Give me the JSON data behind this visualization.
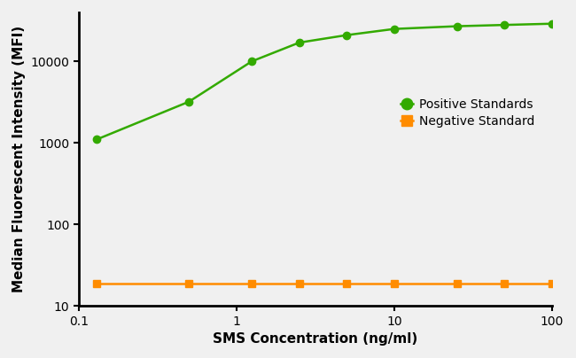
{
  "positive_x": [
    0.13,
    0.5,
    1.25,
    2.5,
    5.0,
    10.0,
    25.0,
    50.0,
    100.0
  ],
  "positive_y": [
    1100,
    3200,
    10000,
    17000,
    21000,
    25000,
    27000,
    28000,
    29000
  ],
  "negative_x": [
    0.13,
    0.5,
    1.25,
    2.5,
    5.0,
    10.0,
    25.0,
    50.0,
    100.0
  ],
  "negative_y": [
    19,
    19,
    19,
    19,
    19,
    19,
    19,
    19,
    19
  ],
  "positive_color": "#33aa00",
  "negative_color": "#ff8c00",
  "positive_label": "Positive Standards",
  "negative_label": "Negative Standard",
  "xlabel": "SMS Concentration (ng/ml)",
  "ylabel": "Median Fluorescent Intensity (MFI)",
  "xlim": [
    0.1,
    100
  ],
  "ylim": [
    10,
    40000
  ],
  "background_color": "#f0f0f0",
  "marker_size": 6,
  "line_width": 1.8,
  "legend_fontsize": 10,
  "axis_label_fontsize": 11,
  "tick_labelsize": 10
}
